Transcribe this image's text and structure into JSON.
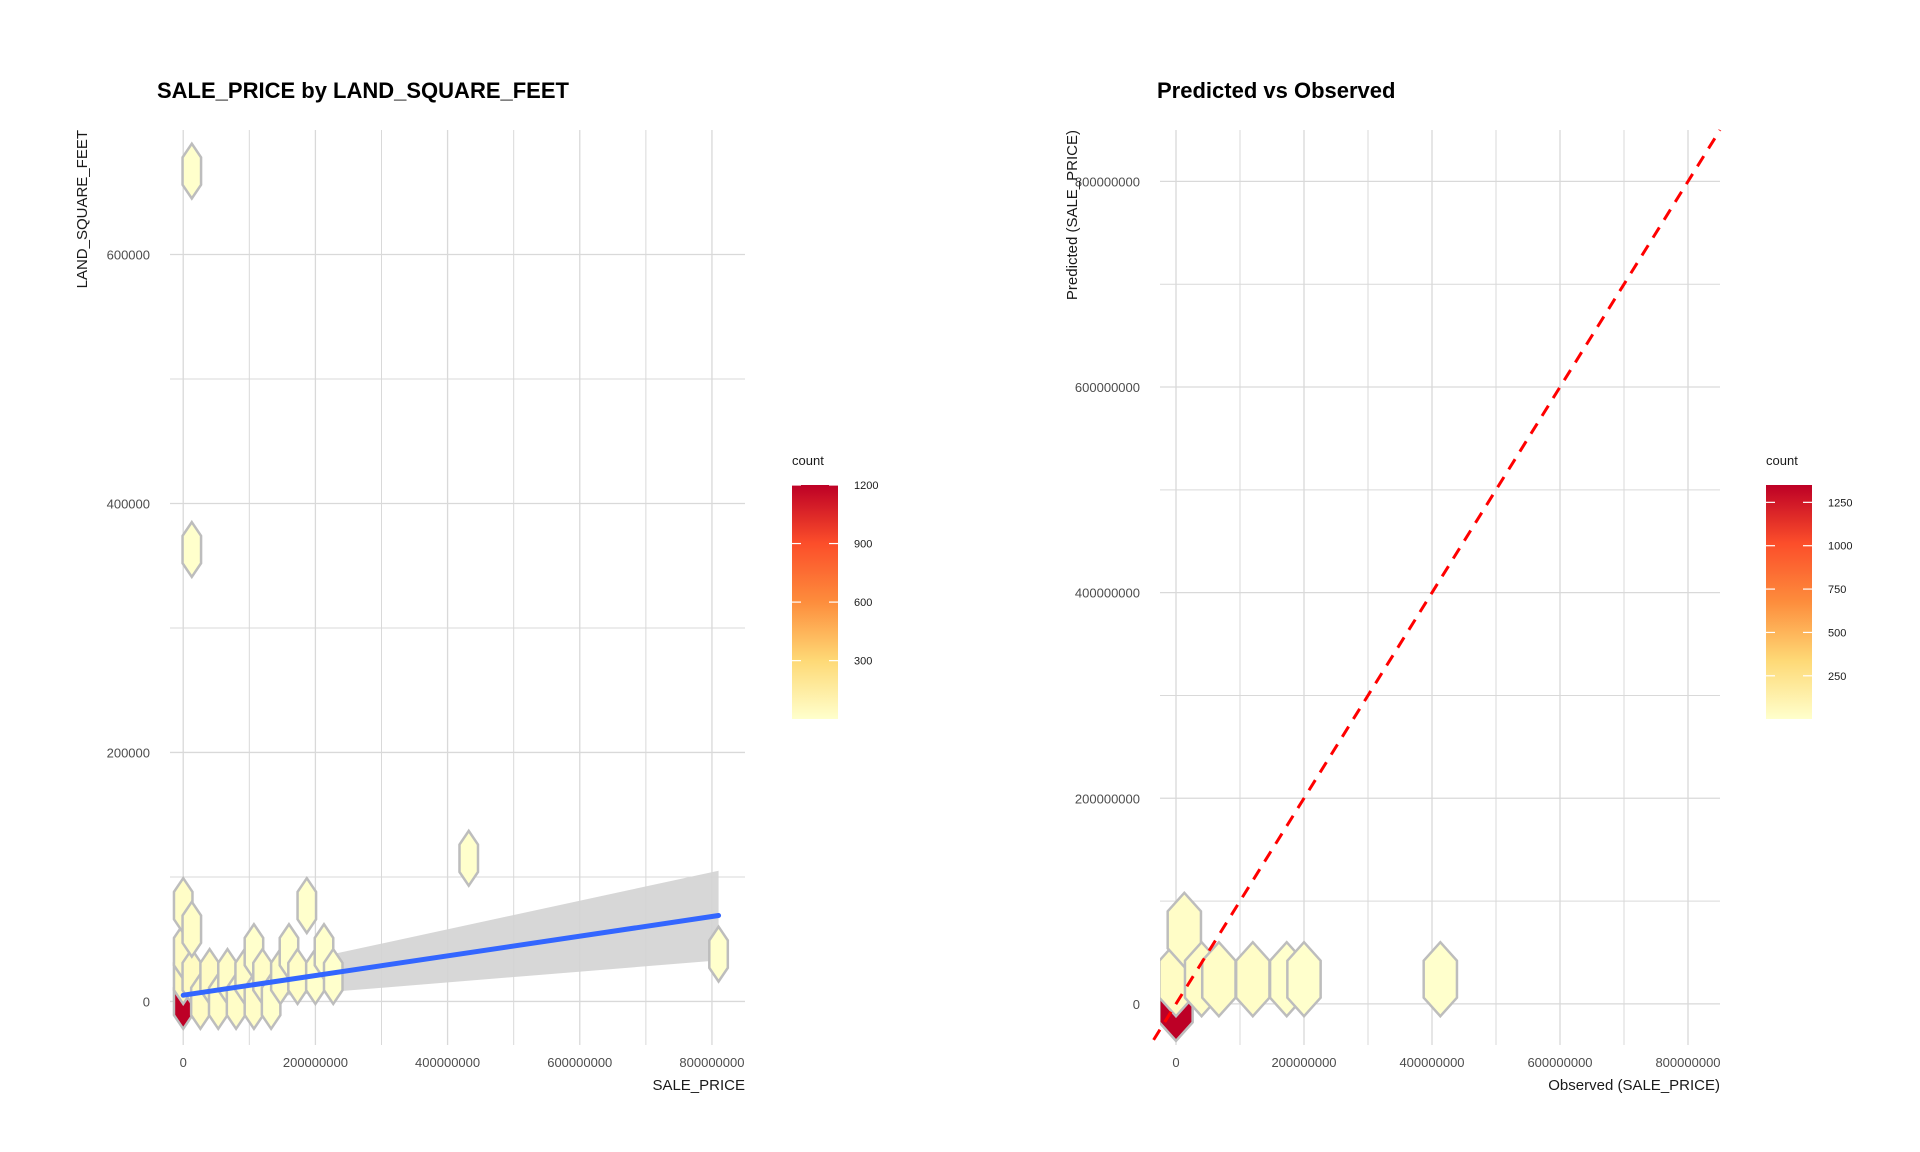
{
  "chart_data": [
    {
      "type": "scatter",
      "subtype": "hexbin-with-regression",
      "title": "SALE_PRICE by LAND_SQUARE_FEET",
      "xlabel": "SALE_PRICE",
      "ylabel": "LAND_SQUARE_FEET",
      "xlim": [
        -20000000,
        850000000
      ],
      "ylim": [
        -35000,
        700000
      ],
      "x_ticks": [
        0,
        200000000,
        400000000,
        600000000,
        800000000
      ],
      "x_tick_labels": [
        "0",
        "200000000",
        "400000000",
        "600000000",
        "800000000"
      ],
      "y_ticks": [
        0,
        200000,
        400000,
        600000
      ],
      "y_tick_labels": [
        "0",
        "200000",
        "400000",
        "600000"
      ],
      "y_minor_ticks": [
        100000,
        300000,
        500000
      ],
      "x_minor_ticks": [
        100000000,
        300000000,
        500000000,
        700000000
      ],
      "grid": true,
      "hex_radius_x": 14000000,
      "hex_radius_y": 22000,
      "hexes": [
        {
          "x": 0,
          "y": 0,
          "count": 1200
        },
        {
          "x": 0,
          "y": 20000,
          "count": 5
        },
        {
          "x": 0,
          "y": 40000,
          "count": 3
        },
        {
          "x": 0,
          "y": 77000,
          "count": 2
        },
        {
          "x": 13000000,
          "y": 20000,
          "count": 4
        },
        {
          "x": 13000000,
          "y": 58000,
          "count": 2
        },
        {
          "x": 26000000,
          "y": 0,
          "count": 3
        },
        {
          "x": 40000000,
          "y": 20000,
          "count": 3
        },
        {
          "x": 53000000,
          "y": 0,
          "count": 2
        },
        {
          "x": 67000000,
          "y": 20000,
          "count": 2
        },
        {
          "x": 80000000,
          "y": 0,
          "count": 2
        },
        {
          "x": 93000000,
          "y": 20000,
          "count": 2
        },
        {
          "x": 107000000,
          "y": 0,
          "count": 2
        },
        {
          "x": 107000000,
          "y": 40000,
          "count": 1
        },
        {
          "x": 120000000,
          "y": 20000,
          "count": 2
        },
        {
          "x": 133000000,
          "y": 0,
          "count": 1
        },
        {
          "x": 147000000,
          "y": 20000,
          "count": 2
        },
        {
          "x": 160000000,
          "y": 40000,
          "count": 1
        },
        {
          "x": 173000000,
          "y": 20000,
          "count": 2
        },
        {
          "x": 187000000,
          "y": 77000,
          "count": 1
        },
        {
          "x": 200000000,
          "y": 20000,
          "count": 1
        },
        {
          "x": 213000000,
          "y": 40000,
          "count": 1
        },
        {
          "x": 227000000,
          "y": 20000,
          "count": 1
        },
        {
          "x": 13000000,
          "y": 363000,
          "count": 1
        },
        {
          "x": 13000000,
          "y": 667000,
          "count": 1
        },
        {
          "x": 432000000,
          "y": 115000,
          "count": 1
        },
        {
          "x": 810000000,
          "y": 38000,
          "count": 1
        }
      ],
      "regression": {
        "x": [
          0,
          810000000
        ],
        "y": [
          5000,
          69000
        ],
        "ci_lower": [
          -2000,
          33000
        ],
        "ci_upper": [
          12000,
          105000
        ],
        "color": "#3366ff"
      },
      "legend": {
        "title": "count",
        "ticks": [
          300,
          600,
          900,
          1200
        ],
        "tick_labels": [
          "300",
          "600",
          "900",
          "1200"
        ],
        "min": 1,
        "max": 1200,
        "placement": "right"
      }
    },
    {
      "type": "scatter",
      "subtype": "hexbin-with-reference-line",
      "title": "Predicted vs Observed",
      "xlabel": "Observed (SALE_PRICE)",
      "ylabel": "Predicted (SALE_PRICE)",
      "xlim": [
        -25000000,
        850000000
      ],
      "ylim": [
        -40000000,
        850000000
      ],
      "x_ticks": [
        0,
        200000000,
        400000000,
        600000000,
        800000000
      ],
      "x_tick_labels": [
        "0",
        "200000000",
        "400000000",
        "600000000",
        "800000000"
      ],
      "y_ticks": [
        0,
        200000000,
        400000000,
        600000000,
        800000000
      ],
      "y_tick_labels": [
        "0",
        "200000000",
        "400000000",
        "600000000",
        "800000000"
      ],
      "y_minor_ticks": [
        100000000,
        300000000,
        500000000,
        700000000
      ],
      "x_minor_ticks": [
        100000000,
        300000000,
        500000000,
        700000000
      ],
      "grid": true,
      "hex_radius_x": 26000000,
      "hex_radius_y": 36000000,
      "hexes": [
        {
          "x": 0,
          "y": 0,
          "count": 1350
        },
        {
          "x": 0,
          "y": 24000000,
          "count": 3
        },
        {
          "x": 13000000,
          "y": 72000000,
          "count": 2
        },
        {
          "x": 40000000,
          "y": 24000000,
          "count": 2
        },
        {
          "x": 67000000,
          "y": 24000000,
          "count": 2
        },
        {
          "x": 120000000,
          "y": 24000000,
          "count": 2
        },
        {
          "x": 173000000,
          "y": 24000000,
          "count": 1
        },
        {
          "x": 200000000,
          "y": 24000000,
          "count": 1
        },
        {
          "x": 413000000,
          "y": 24000000,
          "count": 1
        }
      ],
      "reference_line": {
        "slope": 1,
        "intercept": 0,
        "color": "#ff0000",
        "style": "dashed"
      },
      "legend": {
        "title": "count",
        "ticks": [
          250,
          500,
          750,
          1000,
          1250
        ],
        "tick_labels": [
          "250",
          "500",
          "750",
          "1000",
          "1250"
        ],
        "min": 1,
        "max": 1350,
        "placement": "right"
      }
    }
  ],
  "colors": {
    "low": "#ffffcc",
    "mid1": "#fed976",
    "mid2": "#fd8d3c",
    "mid3": "#fc4e2a",
    "high": "#bd0026",
    "hex_border": "#bdbdbd",
    "grid": "#d9d9d9",
    "ci_band": "#d3d3d3"
  }
}
